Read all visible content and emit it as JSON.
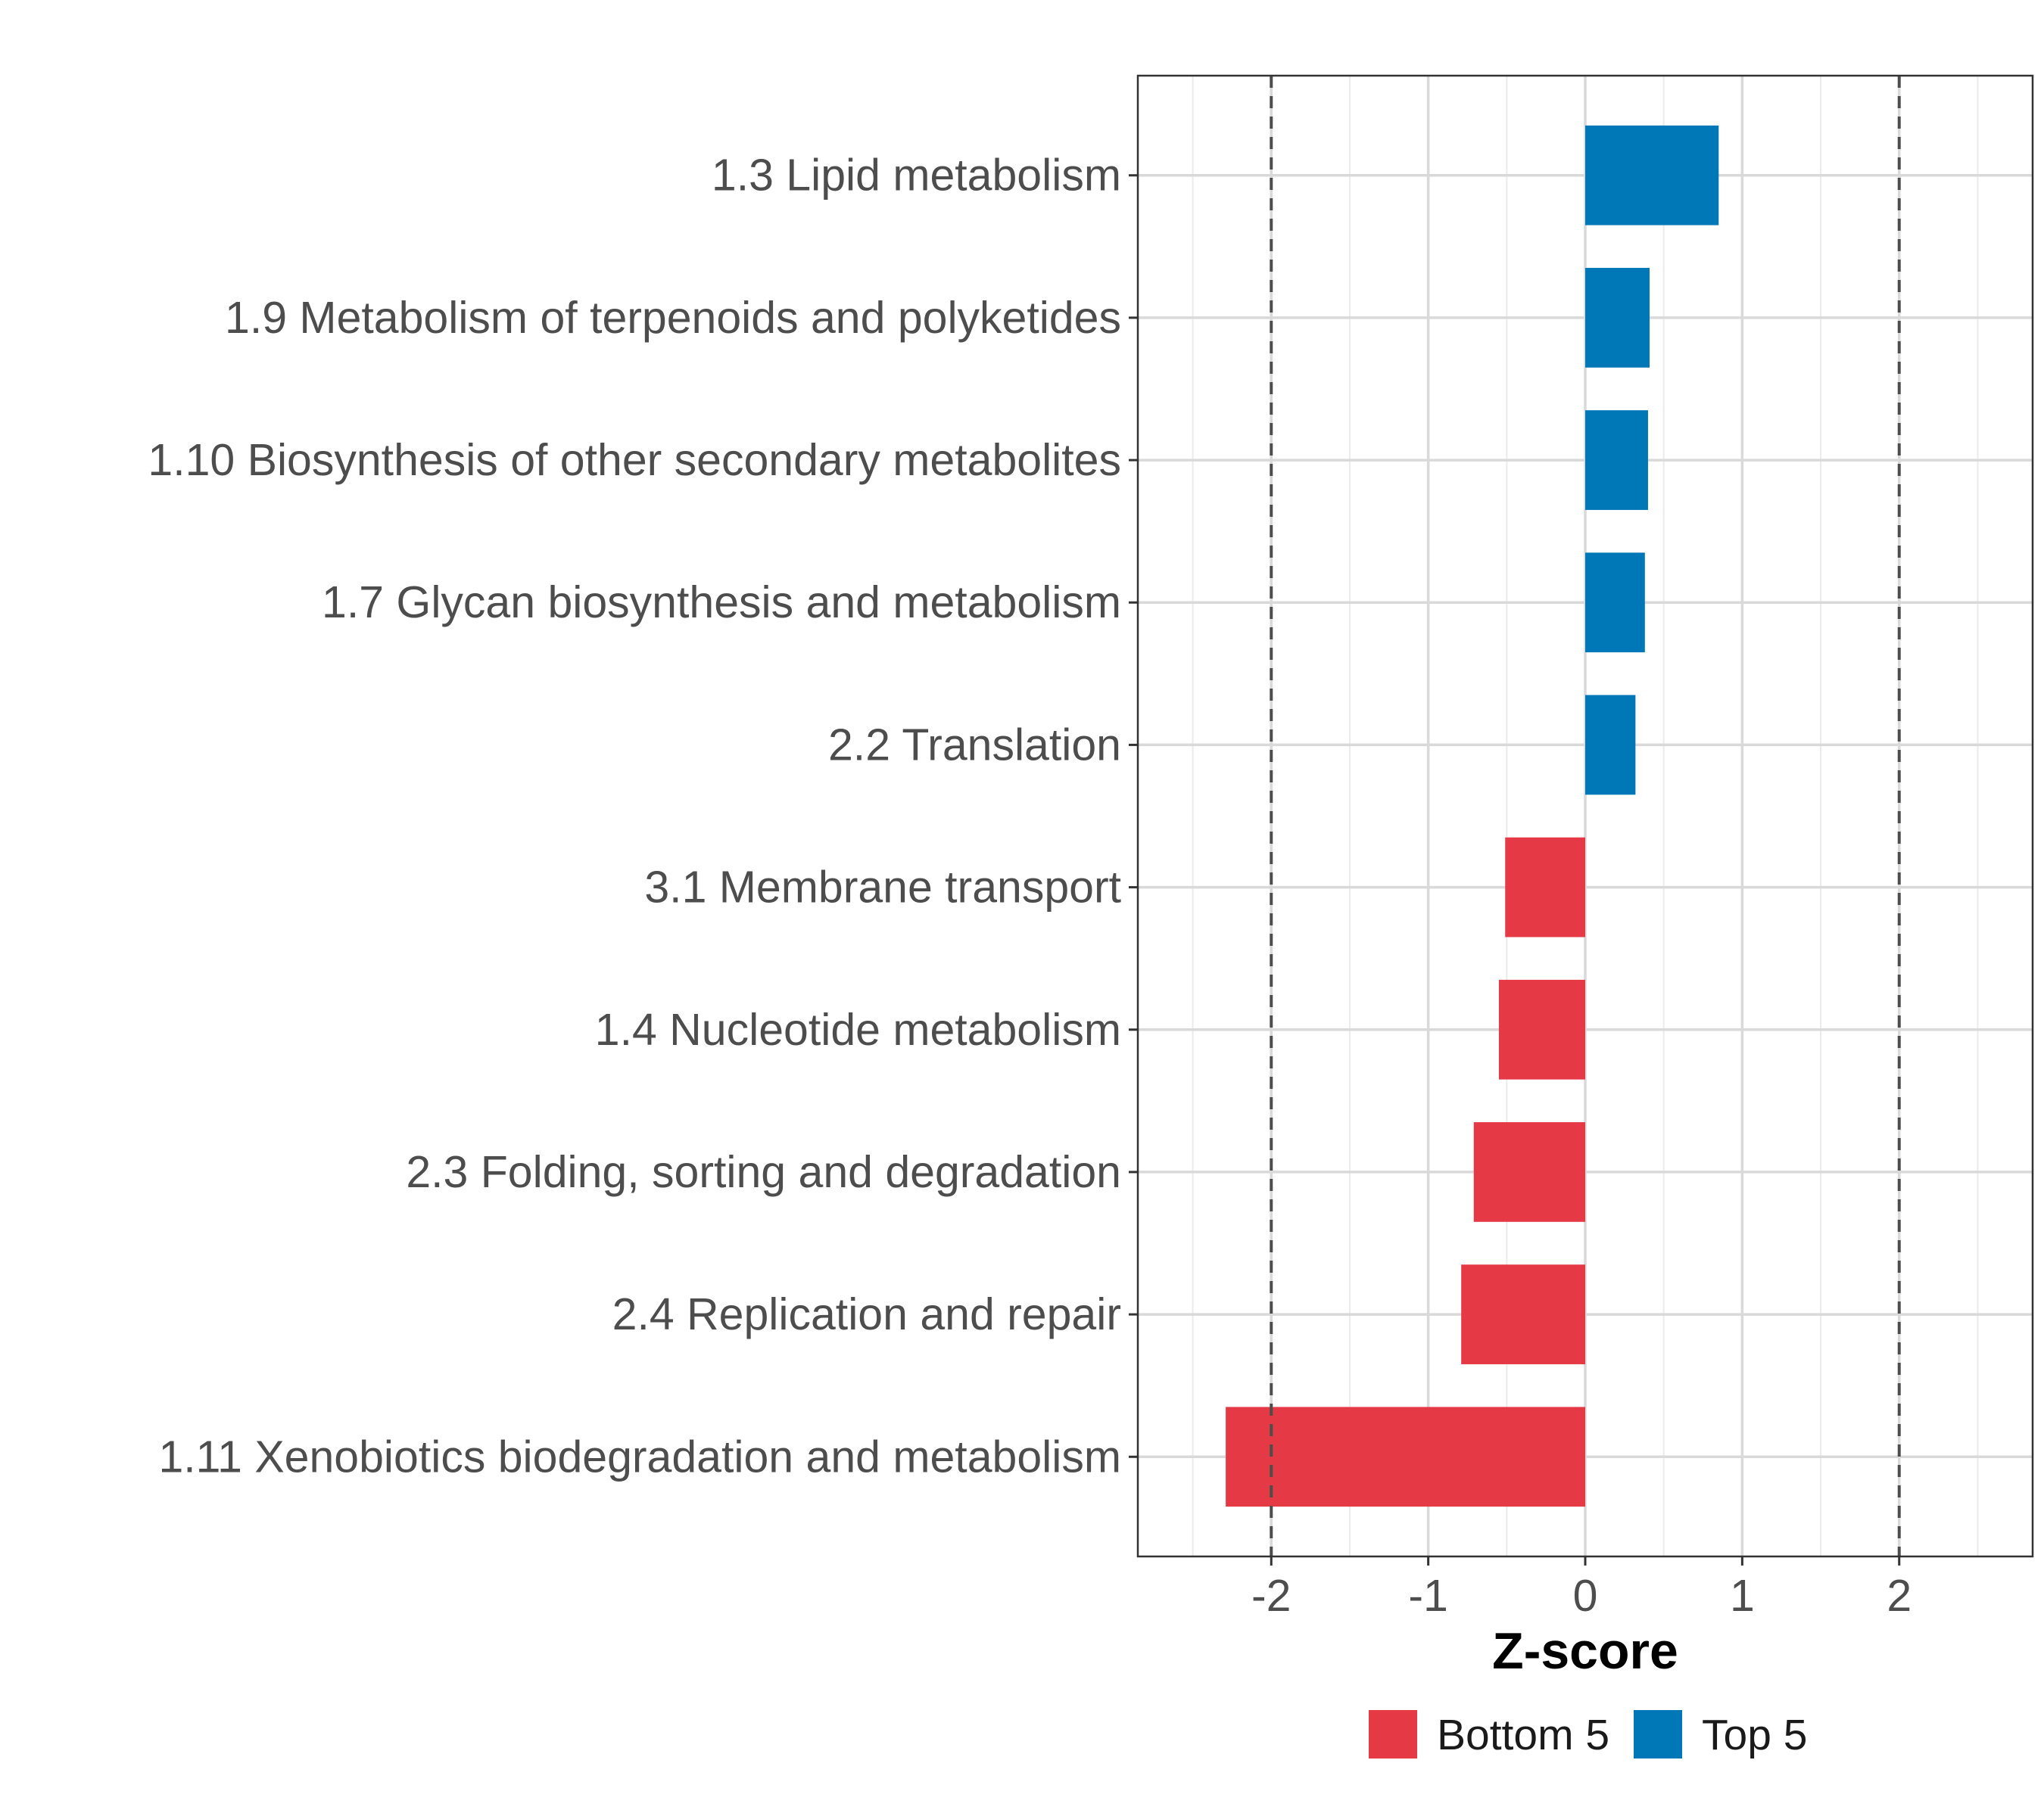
{
  "chart_data": {
    "type": "bar",
    "orientation": "horizontal",
    "title": "",
    "xlabel": "Z-score",
    "ylabel": "",
    "xlim": [
      -2.85,
      2.85
    ],
    "xticks": [
      -2,
      -1,
      0,
      1,
      2
    ],
    "xtick_labels": [
      "-2",
      "-1",
      "0",
      "1",
      "2"
    ],
    "reference_lines": [
      -2,
      2
    ],
    "grid": true,
    "legend_position": "bottom",
    "categories": [
      "1.3 Lipid metabolism",
      "1.9 Metabolism of terpenoids and polyketides",
      "1.10 Biosynthesis of other secondary metabolites",
      "1.7 Glycan biosynthesis and metabolism",
      "2.2 Translation",
      "3.1 Membrane transport",
      "1.4 Nucleotide metabolism",
      "2.3 Folding, sorting and degradation",
      "2.4 Replication and repair",
      "1.11 Xenobiotics biodegradation and metabolism"
    ],
    "values": [
      0.85,
      0.41,
      0.4,
      0.38,
      0.32,
      -0.51,
      -0.55,
      -0.71,
      -0.79,
      -2.29
    ],
    "groups": [
      "Top 5",
      "Top 5",
      "Top 5",
      "Top 5",
      "Top 5",
      "Bottom 5",
      "Bottom 5",
      "Bottom 5",
      "Bottom 5",
      "Bottom 5"
    ],
    "legend": [
      {
        "name": "Bottom 5",
        "color": "#e63946"
      },
      {
        "name": "Top 5",
        "color": "#0077b6"
      }
    ]
  }
}
